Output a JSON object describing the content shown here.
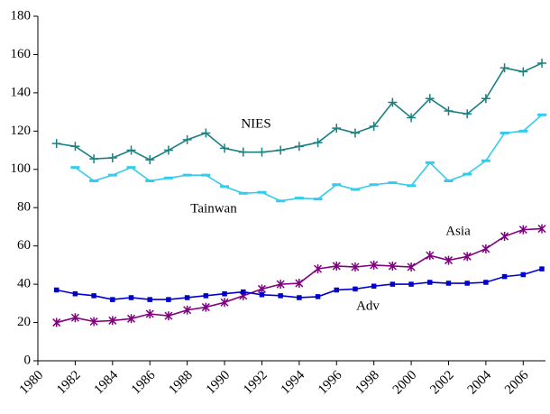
{
  "chart_data": {
    "type": "line",
    "x": [
      1981,
      1982,
      1983,
      1984,
      1985,
      1986,
      1987,
      1988,
      1989,
      1990,
      1991,
      1992,
      1993,
      1994,
      1995,
      1996,
      1997,
      1998,
      1999,
      2000,
      2001,
      2002,
      2003,
      2004,
      2005,
      2006,
      2007
    ],
    "series": [
      {
        "name": "NIES",
        "color": "#1a8080",
        "marker": "plus",
        "values": [
          113.5,
          112,
          105.5,
          106,
          110,
          105,
          110,
          115.5,
          119,
          111,
          109,
          109,
          110,
          112,
          114,
          121.5,
          119,
          122.5,
          135,
          127,
          137,
          130.5,
          129,
          137,
          153,
          151,
          155.5
        ]
      },
      {
        "name": "Tainwan",
        "color": "#33ccee",
        "marker": "dash",
        "values": [
          null,
          101,
          94,
          97,
          101,
          94,
          95.5,
          97,
          97,
          91,
          87.5,
          88,
          83.5,
          85,
          84.5,
          92,
          89.5,
          92,
          93,
          91.5,
          103.5,
          94,
          97.5,
          104.5,
          119,
          120,
          128.5
        ]
      },
      {
        "name": "Asia",
        "color": "#800080",
        "marker": "asterisk",
        "values": [
          20,
          22.5,
          20.5,
          21,
          22,
          24.5,
          23.5,
          26.5,
          28,
          30.5,
          34,
          37.5,
          40,
          40.5,
          48,
          49.5,
          49,
          50,
          49.5,
          49,
          55,
          52.5,
          54.5,
          58.5,
          65,
          68.5,
          69
        ]
      },
      {
        "name": "Adv",
        "color": "#0000cc",
        "marker": "square",
        "values": [
          37,
          35,
          34,
          32,
          33,
          32,
          32,
          33,
          34,
          35,
          36,
          34.5,
          34,
          33,
          33.5,
          37,
          37.5,
          39,
          40,
          40,
          41,
          40.5,
          40.5,
          41,
          44,
          45,
          48
        ]
      }
    ],
    "xlim": [
      1980,
      2007
    ],
    "xticks": [
      1980,
      1982,
      1984,
      1986,
      1988,
      1990,
      1992,
      1994,
      1996,
      1998,
      2000,
      2002,
      2004,
      2006
    ],
    "ylim": [
      0,
      180
    ],
    "yticks": [
      0,
      20,
      40,
      60,
      80,
      100,
      120,
      140,
      160,
      180
    ]
  }
}
